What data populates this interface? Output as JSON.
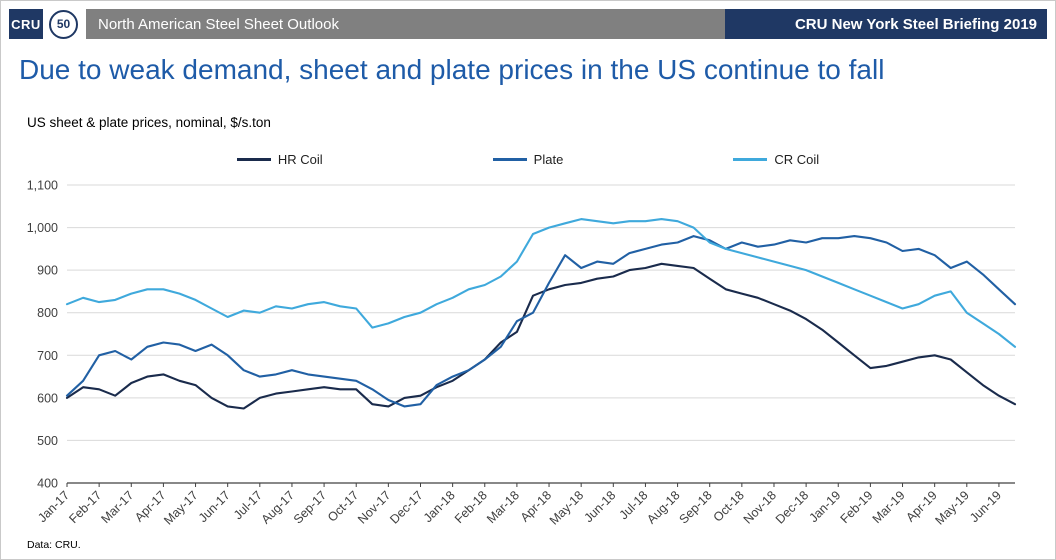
{
  "header": {
    "logo": "CRU",
    "badge": "50",
    "left_title": "North American Steel Sheet Outlook",
    "right_title": "CRU New York Steel Briefing 2019"
  },
  "title": "Due to weak demand, sheet and plate prices in the US continue to fall",
  "subtitle": "US sheet & plate prices, nominal, $/s.ton",
  "source": "Data: CRU.",
  "colors": {
    "header_navy": "#1f3864",
    "header_gray": "#808080",
    "title_blue": "#1e5ba8",
    "grid": "#d9d9d9",
    "axis": "#404040"
  },
  "chart_data": {
    "type": "line",
    "title": "US sheet & plate prices, nominal, $/s.ton",
    "ylim": [
      400,
      1100
    ],
    "ytick_step": 100,
    "grid": "horizontal",
    "legend_position": "top",
    "points_per_month": 2,
    "x_labels": [
      "Jan-17",
      "Feb-17",
      "Mar-17",
      "Apr-17",
      "May-17",
      "Jun-17",
      "Jul-17",
      "Aug-17",
      "Sep-17",
      "Oct-17",
      "Nov-17",
      "Dec-17",
      "Jan-18",
      "Feb-18",
      "Mar-18",
      "Apr-18",
      "May-18",
      "Jun-18",
      "Jul-18",
      "Aug-18",
      "Sep-18",
      "Oct-18",
      "Nov-18",
      "Dec-18",
      "Jan-19",
      "Feb-19",
      "Mar-19",
      "Apr-19",
      "May-19",
      "Jun-19"
    ],
    "series": [
      {
        "name": "HR Coil",
        "color": "#1a2b4c",
        "values": [
          600,
          625,
          620,
          605,
          635,
          650,
          655,
          640,
          630,
          600,
          580,
          575,
          600,
          610,
          615,
          620,
          625,
          620,
          620,
          585,
          580,
          600,
          605,
          625,
          640,
          665,
          690,
          730,
          755,
          840,
          855,
          865,
          870,
          880,
          885,
          900,
          905,
          915,
          910,
          905,
          880,
          855,
          845,
          835,
          820,
          805,
          785,
          760,
          730,
          700,
          670,
          675,
          685,
          695,
          700,
          690,
          660,
          630,
          605,
          585
        ]
      },
      {
        "name": "Plate",
        "color": "#2160a4",
        "values": [
          605,
          640,
          700,
          710,
          690,
          720,
          730,
          725,
          710,
          725,
          700,
          665,
          650,
          655,
          665,
          655,
          650,
          645,
          640,
          620,
          595,
          580,
          585,
          630,
          650,
          665,
          690,
          720,
          780,
          800,
          870,
          935,
          905,
          920,
          915,
          940,
          950,
          960,
          965,
          980,
          970,
          950,
          965,
          955,
          960,
          970,
          965,
          975,
          975,
          980,
          975,
          965,
          945,
          950,
          935,
          905,
          920,
          890,
          855,
          820
        ]
      },
      {
        "name": "CR Coil",
        "color": "#3fa9dc",
        "values": [
          820,
          835,
          825,
          830,
          845,
          855,
          855,
          845,
          830,
          810,
          790,
          805,
          800,
          815,
          810,
          820,
          825,
          815,
          810,
          765,
          775,
          790,
          800,
          820,
          835,
          855,
          865,
          885,
          920,
          985,
          1000,
          1010,
          1020,
          1015,
          1010,
          1015,
          1015,
          1020,
          1015,
          1000,
          965,
          950,
          940,
          930,
          920,
          910,
          900,
          885,
          870,
          855,
          840,
          825,
          810,
          820,
          840,
          850,
          800,
          775,
          750,
          720
        ]
      }
    ]
  }
}
